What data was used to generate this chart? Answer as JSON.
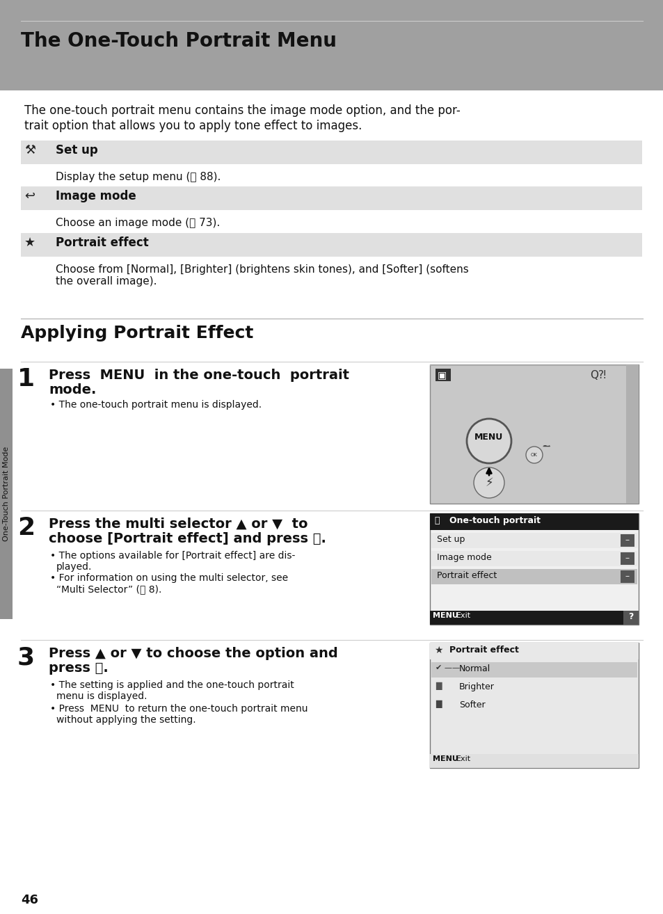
{
  "page_bg": "#ffffff",
  "header_bg": "#a0a0a0",
  "header_title": "The One-Touch Portrait Menu",
  "intro_text_line1": "The one-touch portrait menu contains the image mode option, and the por-",
  "intro_text_line2": "trait option that allows you to apply tone effect to images.",
  "table_row_bg": "#e0e0e0",
  "table_items": [
    {
      "label": "Set up",
      "desc": "Display the setup menu (Ⓒ 88)."
    },
    {
      "label": "Image mode",
      "desc": "Choose an image mode (Ⓒ 73)."
    },
    {
      "label": "Portrait effect",
      "desc": "Choose from [Normal], [Brighter] (brightens skin tones), and [Softer] (softens\nthe overall image)."
    }
  ],
  "section2_title": "Applying Portrait Effect",
  "sidebar_text": "One-Touch Portrait Mode",
  "sidebar_bg": "#909090",
  "step1_text_line1": "Press  MENU  in the one-touch  portrait",
  "step1_text_line2": "mode.",
  "step1_bullet": "The one-touch portrait menu is displayed.",
  "step2_text_line1": "Press the multi selector ▲ or ▼  to",
  "step2_text_line2": "choose [Portrait effect] and press ⒪.",
  "step2_bullet1": "The options available for [Portrait effect] are dis-",
  "step2_bullet1b": "played.",
  "step2_bullet2": "For information on using the multi selector, see",
  "step2_bullet2b": "“Multi Selector” (Ⓒ 8).",
  "step3_text_line1": "Press ▲ or ▼ to choose the option and",
  "step3_text_line2": "press ⒪.",
  "step3_bullet1": "The setting is applied and the one-touch portrait",
  "step3_bullet1b": "menu is displayed.",
  "step3_bullet2": "Press  MENU  to return the one-touch portrait menu",
  "step3_bullet2b": "without applying the setting.",
  "page_number": "46",
  "cam_bg": "#c8c8c8",
  "cam_border": "#888888",
  "cam_circle_bg": "#d8d8d8",
  "menu2_header_bg": "#1a1a1a",
  "menu2_header_text": "white",
  "menu2_row_bg": "#e8e8e8",
  "menu2_row_sel": "#b0b0b0",
  "menu2_bot_bg": "#1a1a1a",
  "menu3_header_bg": "#e8e8e8",
  "menu3_row_sel": "#c8c8c8",
  "menu3_bot_bg": "#e0e0e0"
}
